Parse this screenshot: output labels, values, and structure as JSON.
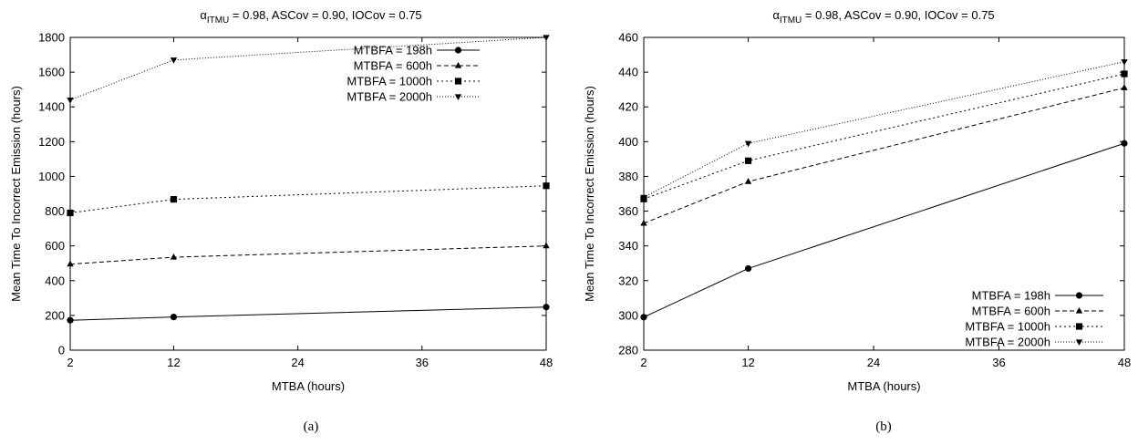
{
  "chart_data": [
    {
      "type": "line",
      "title": {
        "alpha": "α",
        "sub": "ITMU",
        "rest": " = 0.98, ASCov = 0.90, IOCov = 0.75"
      },
      "caption": "(a)",
      "xlabel": "MTBA (hours)",
      "ylabel": "Mean Time To Incorrect Emission (hours)",
      "x_ticks": [
        2,
        12,
        24,
        36,
        48
      ],
      "y_ticks": [
        0,
        200,
        400,
        600,
        800,
        1000,
        1200,
        1400,
        1600,
        1800
      ],
      "xlim": [
        2,
        48
      ],
      "ylim": [
        0,
        1800
      ],
      "legend_position": "top-right",
      "x": [
        2,
        12,
        48
      ],
      "series": [
        {
          "name": "MTBFA = 198h",
          "values": [
            172,
            191,
            248
          ],
          "marker": "circle",
          "dash": "solid"
        },
        {
          "name": "MTBFA = 600h",
          "values": [
            495,
            535,
            600
          ],
          "marker": "triangle-up",
          "dash": "dashed"
        },
        {
          "name": "MTBFA = 1000h",
          "values": [
            790,
            868,
            946
          ],
          "marker": "square",
          "dash": "dotted"
        },
        {
          "name": "MTBFA = 2000h",
          "values": [
            1440,
            1670,
            1800
          ],
          "marker": "triangle-down",
          "dash": "fine-dotted"
        }
      ]
    },
    {
      "type": "line",
      "title": {
        "alpha": "α",
        "sub": "ITMU",
        "rest": " = 0.98, ASCov = 0.90, IOCov = 0.75"
      },
      "caption": "(b)",
      "xlabel": "MTBA (hours)",
      "ylabel": "Mean Time To Incorrect Emission (hours)",
      "x_ticks": [
        2,
        12,
        24,
        36,
        48
      ],
      "y_ticks": [
        280,
        300,
        320,
        340,
        360,
        380,
        400,
        420,
        440,
        460
      ],
      "xlim": [
        2,
        48
      ],
      "ylim": [
        280,
        460
      ],
      "legend_position": "bottom-right",
      "x": [
        2,
        12,
        48
      ],
      "series": [
        {
          "name": "MTBFA = 198h",
          "values": [
            299,
            327,
            399
          ],
          "marker": "circle",
          "dash": "solid"
        },
        {
          "name": "MTBFA = 600h",
          "values": [
            353,
            377,
            431
          ],
          "marker": "triangle-up",
          "dash": "dashed"
        },
        {
          "name": "MTBFA = 1000h",
          "values": [
            367,
            389,
            439
          ],
          "marker": "square",
          "dash": "dotted"
        },
        {
          "name": "MTBFA = 2000h",
          "values": [
            368,
            399,
            446
          ],
          "marker": "triangle-down",
          "dash": "fine-dotted"
        }
      ]
    }
  ]
}
